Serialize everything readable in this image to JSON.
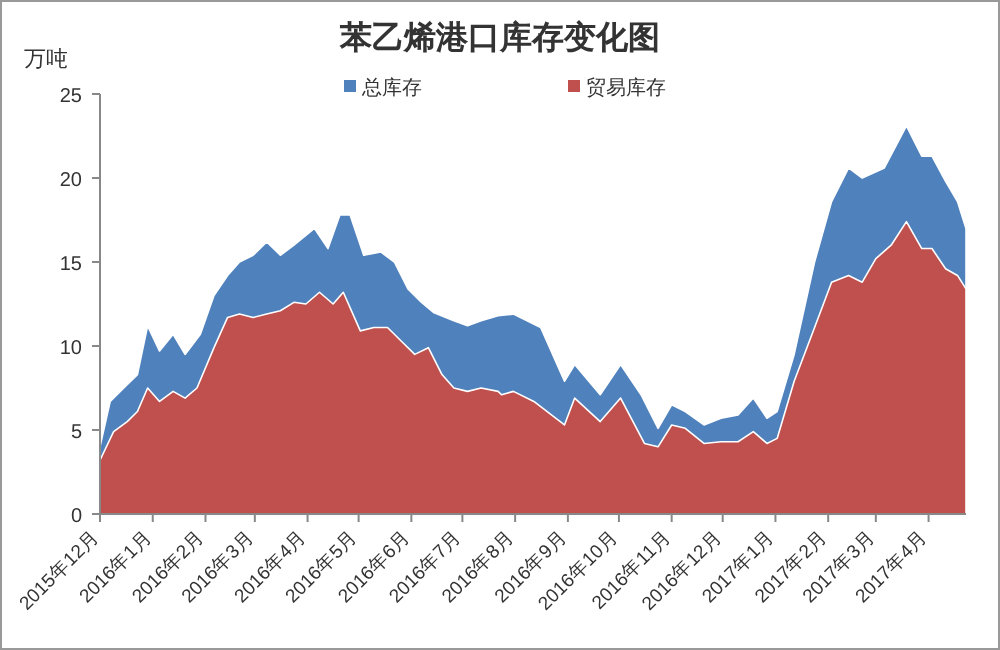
{
  "chart_data": {
    "type": "area",
    "title": "苯乙烯港口库存变化图",
    "ylabel": "万吨",
    "xlim": [
      "2015-12-01",
      "2017-04-23"
    ],
    "ylim": [
      0,
      25
    ],
    "yticks": [
      0,
      5,
      10,
      15,
      20,
      25
    ],
    "xticks": [
      {
        "value": "2015-12-01",
        "label": "2015年12月"
      },
      {
        "value": "2016-01-01",
        "label": "2016年1月"
      },
      {
        "value": "2016-02-01",
        "label": "2016年2月"
      },
      {
        "value": "2016-03-01",
        "label": "2016年3月"
      },
      {
        "value": "2016-04-01",
        "label": "2016年4月"
      },
      {
        "value": "2016-05-01",
        "label": "2016年5月"
      },
      {
        "value": "2016-06-01",
        "label": "2016年6月"
      },
      {
        "value": "2016-07-01",
        "label": "2016年7月"
      },
      {
        "value": "2016-08-01",
        "label": "2016年8月"
      },
      {
        "value": "2016-09-01",
        "label": "2016年9月"
      },
      {
        "value": "2016-10-01",
        "label": "2016年10月"
      },
      {
        "value": "2016-11-01",
        "label": "2016年11月"
      },
      {
        "value": "2016-12-01",
        "label": "2016年12月"
      },
      {
        "value": "2017-01-01",
        "label": "2017年1月"
      },
      {
        "value": "2017-02-01",
        "label": "2017年2月"
      },
      {
        "value": "2017-03-01",
        "label": "2017年3月"
      },
      {
        "value": "2017-04-01",
        "label": "2017年4月"
      }
    ],
    "grid": false,
    "legend": "top",
    "series": [
      {
        "name": "总库存",
        "color": "#4f81bd",
        "x": [
          "2015-12-01",
          "2015-12-07",
          "2015-12-15",
          "2015-12-23",
          "2015-12-29",
          "2016-01-05",
          "2016-01-13",
          "2016-01-20",
          "2016-01-29",
          "2016-02-06",
          "2016-02-14",
          "2016-02-21",
          "2016-02-29",
          "2016-03-08",
          "2016-03-16",
          "2016-03-24",
          "2016-04-05",
          "2016-04-13",
          "2016-04-20",
          "2016-04-26",
          "2016-05-04",
          "2016-05-14",
          "2016-05-22",
          "2016-05-30",
          "2016-06-07",
          "2016-06-14",
          "2016-06-26",
          "2016-07-04",
          "2016-07-12",
          "2016-07-22",
          "2016-07-31",
          "2016-08-16",
          "2016-08-30",
          "2016-09-05",
          "2016-09-20",
          "2016-10-02",
          "2016-10-14",
          "2016-10-24",
          "2016-11-01",
          "2016-11-09",
          "2016-11-20",
          "2016-11-30",
          "2016-12-10",
          "2016-12-19",
          "2016-12-27",
          "2017-01-02",
          "2017-01-12",
          "2017-01-24",
          "2017-02-03",
          "2017-02-13",
          "2017-02-21",
          "2017-03-06",
          "2017-03-19",
          "2017-03-28",
          "2017-04-03",
          "2017-04-11",
          "2017-04-18",
          "2017-04-23"
        ],
        "values": [
          4.0,
          6.7,
          7.5,
          8.3,
          11.2,
          9.7,
          10.7,
          9.5,
          10.7,
          13.0,
          14.2,
          15.0,
          15.4,
          16.2,
          15.4,
          16.0,
          17.0,
          15.8,
          17.8,
          17.8,
          15.4,
          15.6,
          15.0,
          13.4,
          12.6,
          12.0,
          11.5,
          11.2,
          11.5,
          11.8,
          11.9,
          11.1,
          7.9,
          8.9,
          7.1,
          8.9,
          7.1,
          5.1,
          6.5,
          6.1,
          5.3,
          5.7,
          5.9,
          6.9,
          5.7,
          6.1,
          9.5,
          15.0,
          18.6,
          20.6,
          20.0,
          20.6,
          23.1,
          21.3,
          21.3,
          19.8,
          18.6,
          17.0
        ]
      },
      {
        "name": "贸易库存",
        "color": "#c0504d",
        "x": [
          "2015-12-01",
          "2015-12-09",
          "2015-12-17",
          "2015-12-23",
          "2015-12-29",
          "2016-01-05",
          "2016-01-13",
          "2016-01-20",
          "2016-01-27",
          "2016-02-06",
          "2016-02-14",
          "2016-02-21",
          "2016-02-29",
          "2016-03-08",
          "2016-03-16",
          "2016-03-24",
          "2016-03-31",
          "2016-04-08",
          "2016-04-16",
          "2016-04-22",
          "2016-05-02",
          "2016-05-10",
          "2016-05-18",
          "2016-05-26",
          "2016-06-03",
          "2016-06-11",
          "2016-06-19",
          "2016-06-26",
          "2016-07-04",
          "2016-07-12",
          "2016-07-22",
          "2016-07-24",
          "2016-07-31",
          "2016-08-12",
          "2016-08-30",
          "2016-09-05",
          "2016-09-20",
          "2016-10-02",
          "2016-10-16",
          "2016-10-24",
          "2016-11-01",
          "2016-11-09",
          "2016-11-20",
          "2016-11-30",
          "2016-12-10",
          "2016-12-19",
          "2016-12-27",
          "2017-01-02",
          "2017-01-12",
          "2017-01-24",
          "2017-02-03",
          "2017-02-13",
          "2017-02-21",
          "2017-03-01",
          "2017-03-10",
          "2017-03-19",
          "2017-03-28",
          "2017-04-03",
          "2017-04-11",
          "2017-04-18",
          "2017-04-23"
        ],
        "values": [
          3.2,
          4.9,
          5.5,
          6.1,
          7.5,
          6.7,
          7.3,
          6.9,
          7.5,
          9.9,
          11.7,
          11.9,
          11.7,
          11.9,
          12.1,
          12.6,
          12.5,
          13.2,
          12.5,
          13.2,
          10.9,
          11.1,
          11.1,
          10.3,
          9.5,
          9.9,
          8.3,
          7.5,
          7.3,
          7.5,
          7.3,
          7.1,
          7.3,
          6.7,
          5.3,
          6.9,
          5.5,
          6.9,
          4.2,
          4.0,
          5.3,
          5.1,
          4.2,
          4.3,
          4.3,
          4.9,
          4.2,
          4.5,
          7.9,
          11.1,
          13.8,
          14.2,
          13.8,
          15.2,
          16.0,
          17.4,
          15.8,
          15.8,
          14.6,
          14.2,
          13.4
        ]
      }
    ]
  }
}
